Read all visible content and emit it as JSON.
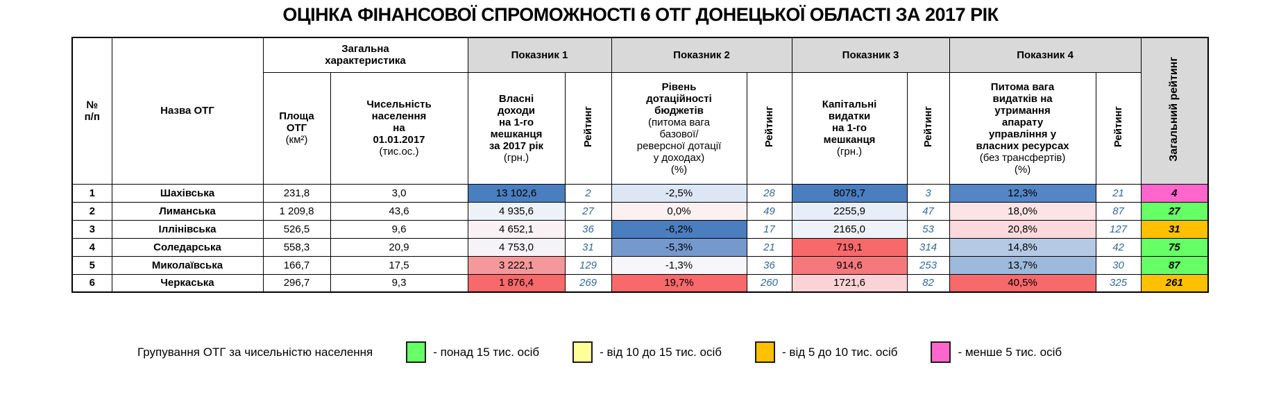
{
  "title": "ОЦІНКА ФІНАНСОВОЇ СПРОМОЖНОСТІ 6 ОТГ ДОНЕЦЬКОЇ ОБЛАСТІ ЗА 2017 РІК",
  "colors": {
    "header_gray": "#d9d9d9",
    "rating_text": "#31689b",
    "scale_blue_strong": "#4a7ebf",
    "scale_red_strong": "#f8696b",
    "group_green": "#66ff66",
    "group_yellow": "#ffff99",
    "group_orange": "#ffc000",
    "group_magenta": "#ff66cc"
  },
  "table": {
    "header": {
      "num": "№\nп/п",
      "name": "Назва ОТГ",
      "general_group": "Загальна\nхарактеристика",
      "area": {
        "title": "Площа\nОТГ",
        "unit": "(км²)"
      },
      "population": {
        "title": "Чисельність\nнаселення\nна\n01.01.2017",
        "unit": "(тис.ос.)"
      },
      "groups": [
        "Показник 1",
        "Показник 2",
        "Показник 3",
        "Показник 4"
      ],
      "ind1": {
        "title": "Власні\nдоходи\nна 1-го\nмешканця\nза 2017 рік",
        "unit": "(грн.)"
      },
      "ind2": {
        "title": "Рівень\nдотаційності\nбюджетів",
        "unit": "(питома вага\nбазової/\nреверсної дотації\nу доходах)\n(%)"
      },
      "ind3": {
        "title": "Капітальні\nвидатки\nна 1-го\nмешканця",
        "unit": "(грн.)"
      },
      "ind4": {
        "title": "Питома вага\nвидатків на\nутримання\nапарату\nуправління у\nвласних ресурсах",
        "unit": "(без трансфертів)\n(%)"
      },
      "rating": "Рейтинг",
      "total": "Загальний рейтинг"
    },
    "rows": [
      {
        "num": "1",
        "name": "Шахівська",
        "area": "231,8",
        "population": "3,0",
        "ind1": "13 102,6",
        "ind1_bg": "#4a7ebf",
        "r1": "2",
        "ind2": "-2,5%",
        "ind2_bg": "#dce6f4",
        "r2": "28",
        "ind3": "8078,7",
        "ind3_bg": "#4a7ebf",
        "r3": "3",
        "ind4": "12,3%",
        "ind4_bg": "#5585c4",
        "r4": "21",
        "total": "4",
        "total_bg": "#ff66cc"
      },
      {
        "num": "2",
        "name": "Лиманська",
        "area": "1 209,8",
        "population": "43,6",
        "ind1": "4 935,6",
        "ind1_bg": "#edf2f9",
        "r1": "27",
        "ind2": "0,0%",
        "ind2_bg": "#fdf0f1",
        "r2": "49",
        "ind3": "2255,9",
        "ind3_bg": "#e8eef8",
        "r3": "47",
        "ind4": "18,0%",
        "ind4_bg": "#fce3e5",
        "r4": "87",
        "total": "27",
        "total_bg": "#66ff66"
      },
      {
        "num": "3",
        "name": "Іллінівська",
        "area": "526,5",
        "population": "9,6",
        "ind1": "4 652,1",
        "ind1_bg": "#f9f1f3",
        "r1": "36",
        "ind2": "-6,2%",
        "ind2_bg": "#4a7ebf",
        "r2": "17",
        "ind3": "2165,0",
        "ind3_bg": "#eef2f9",
        "r3": "53",
        "ind4": "20,8%",
        "ind4_bg": "#fbd9dc",
        "r4": "127",
        "total": "31",
        "total_bg": "#ffc000"
      },
      {
        "num": "4",
        "name": "Соледарська",
        "area": "558,3",
        "population": "20,9",
        "ind1": "4 753,0",
        "ind1_bg": "#f5f3f8",
        "r1": "31",
        "ind2": "-5,3%",
        "ind2_bg": "#7599cc",
        "r2": "21",
        "ind3": "719,1",
        "ind3_bg": "#f8696b",
        "r3": "314",
        "ind4": "14,8%",
        "ind4_bg": "#b5c9e4",
        "r4": "42",
        "total": "75",
        "total_bg": "#66ff66"
      },
      {
        "num": "5",
        "name": "Миколаївська",
        "area": "166,7",
        "population": "17,5",
        "ind1": "3 222,1",
        "ind1_bg": "#f4989b",
        "r1": "129",
        "ind2": "-1,3%",
        "ind2_bg": "#f7f6fa",
        "r2": "36",
        "ind3": "914,6",
        "ind3_bg": "#f5797c",
        "r3": "253",
        "ind4": "13,7%",
        "ind4_bg": "#9db9dc",
        "r4": "30",
        "total": "87",
        "total_bg": "#66ff66"
      },
      {
        "num": "6",
        "name": "Черкаська",
        "area": "296,7",
        "population": "9,3",
        "ind1": "1 876,4",
        "ind1_bg": "#f8696b",
        "r1": "269",
        "ind2": "19,7%",
        "ind2_bg": "#f8696b",
        "r2": "260",
        "ind3": "1721,6",
        "ind3_bg": "#fbd3d6",
        "r3": "82",
        "ind4": "40,5%",
        "ind4_bg": "#f8696b",
        "r4": "325",
        "total": "261",
        "total_bg": "#ffc000"
      }
    ]
  },
  "legend": {
    "label": "Групування ОТГ за чисельністю населення",
    "items": [
      {
        "color": "#66ff66",
        "label": "- понад 15 тис. осіб"
      },
      {
        "color": "#ffff99",
        "label": "- від 10 до 15 тис. осіб"
      },
      {
        "color": "#ffc000",
        "label": "- від 5 до 10 тис. осіб"
      },
      {
        "color": "#ff66cc",
        "label": "- менше 5 тис. осіб"
      }
    ]
  }
}
